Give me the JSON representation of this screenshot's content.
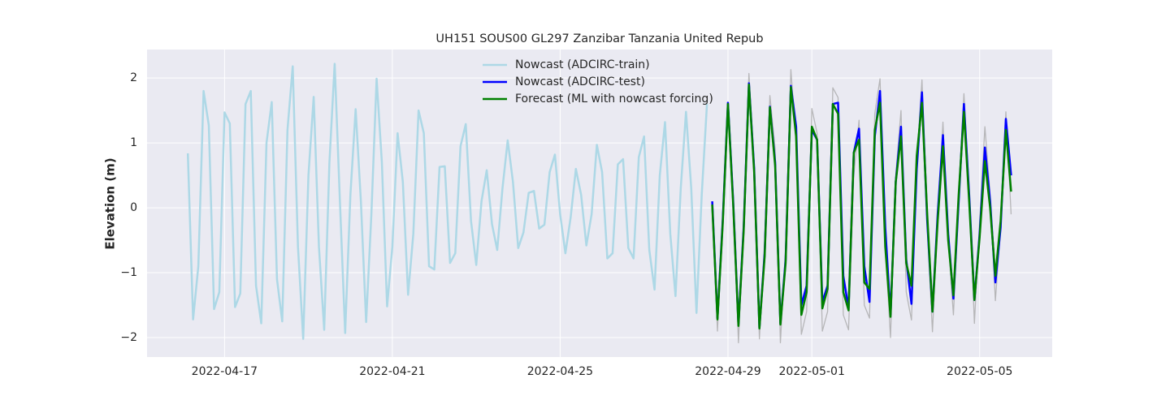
{
  "chart_data": {
    "type": "line",
    "title": "UH151 SOUS00 GL297 Zanzibar Tanzania United Repub",
    "y_label": "Elevation (m)",
    "xlim": [
      "2022-04-15T03:40",
      "2022-05-06T17:30"
    ],
    "xticks": [
      "2022-04-17",
      "2022-04-21",
      "2022-04-25",
      "2022-04-29",
      "2022-05-01",
      "2022-05-05"
    ],
    "ylim": [
      -2.3,
      2.44
    ],
    "yticks": [
      {
        "value": -2,
        "label": "−2"
      },
      {
        "value": -1,
        "label": "−1"
      },
      0,
      1,
      2
    ],
    "grid": true,
    "legend": "upper center",
    "series": [
      {
        "color": "#a9a9a9",
        "x": [
          "2022-04-28T15:00",
          "2022-04-28T18:00",
          "2022-04-28T21:00",
          "2022-04-29T00:00",
          "2022-04-29T03:00",
          "2022-04-29T06:00",
          "2022-04-29T09:00",
          "2022-04-29T12:00",
          "2022-04-29T15:00",
          "2022-04-29T18:00",
          "2022-04-29T21:00",
          "2022-04-30T00:00",
          "2022-04-30T03:00",
          "2022-04-30T06:00",
          "2022-04-30T09:00",
          "2022-04-30T12:00",
          "2022-04-30T15:00",
          "2022-04-30T18:00",
          "2022-04-30T21:00",
          "2022-05-01T00:00",
          "2022-05-01T03:00",
          "2022-05-01T06:00",
          "2022-05-01T09:00",
          "2022-05-01T12:00",
          "2022-05-01T15:00",
          "2022-05-01T18:00",
          "2022-05-01T21:00",
          "2022-05-02T00:00",
          "2022-05-02T03:00",
          "2022-05-02T06:00",
          "2022-05-02T09:00",
          "2022-05-02T12:00",
          "2022-05-02T15:00",
          "2022-05-02T18:00",
          "2022-05-02T21:00",
          "2022-05-03T00:00",
          "2022-05-03T03:00",
          "2022-05-03T06:00",
          "2022-05-03T09:00",
          "2022-05-03T12:00",
          "2022-05-03T15:00",
          "2022-05-03T18:00",
          "2022-05-03T21:00",
          "2022-05-04T00:00",
          "2022-05-04T03:00",
          "2022-05-04T06:00",
          "2022-05-04T09:00",
          "2022-05-04T12:00",
          "2022-05-04T15:00",
          "2022-05-04T18:00",
          "2022-05-04T21:00",
          "2022-05-05T00:00",
          "2022-05-05T03:00",
          "2022-05-05T06:00",
          "2022-05-05T09:00",
          "2022-05-05T12:00",
          "2022-05-05T15:00",
          "2022-05-05T18:00"
        ],
        "values": [
          0.05,
          -1.9,
          -0.1,
          1.6,
          0.2,
          -2.08,
          -0.2,
          2.07,
          0.7,
          -2.02,
          -0.5,
          1.73,
          0.9,
          -2.08,
          -0.6,
          2.13,
          1.0,
          -1.95,
          -1.6,
          1.53,
          1.15,
          -1.9,
          -1.6,
          1.85,
          1.7,
          -1.65,
          -1.88,
          0.5,
          1.35,
          -1.5,
          -1.7,
          1.45,
          1.99,
          -0.6,
          -2.0,
          0.5,
          1.5,
          -1.3,
          -1.73,
          0.7,
          1.97,
          -0.3,
          -1.91,
          -0.2,
          1.32,
          -0.5,
          -1.65,
          0.1,
          1.76,
          0.3,
          -1.78,
          -0.2,
          1.25,
          0.2,
          -1.43,
          -0.3,
          1.48,
          -0.1
        ]
      },
      {
        "name": "Nowcast (ADCIRC-train)",
        "color": "#add8e6",
        "x": [
          "2022-04-16T03:00",
          "2022-04-16T06:00",
          "2022-04-16T09:00",
          "2022-04-16T12:00",
          "2022-04-16T15:00",
          "2022-04-16T18:00",
          "2022-04-16T21:00",
          "2022-04-17T00:00",
          "2022-04-17T03:00",
          "2022-04-17T06:00",
          "2022-04-17T09:00",
          "2022-04-17T12:00",
          "2022-04-17T15:00",
          "2022-04-17T18:00",
          "2022-04-17T21:00",
          "2022-04-18T00:00",
          "2022-04-18T03:00",
          "2022-04-18T06:00",
          "2022-04-18T09:00",
          "2022-04-18T12:00",
          "2022-04-18T15:00",
          "2022-04-18T18:00",
          "2022-04-18T21:00",
          "2022-04-19T00:00",
          "2022-04-19T03:00",
          "2022-04-19T06:00",
          "2022-04-19T09:00",
          "2022-04-19T12:00",
          "2022-04-19T15:00",
          "2022-04-19T18:00",
          "2022-04-19T21:00",
          "2022-04-20T00:00",
          "2022-04-20T03:00",
          "2022-04-20T06:00",
          "2022-04-20T09:00",
          "2022-04-20T12:00",
          "2022-04-20T15:00",
          "2022-04-20T18:00",
          "2022-04-20T21:00",
          "2022-04-21T00:00",
          "2022-04-21T03:00",
          "2022-04-21T06:00",
          "2022-04-21T09:00",
          "2022-04-21T12:00",
          "2022-04-21T15:00",
          "2022-04-21T18:00",
          "2022-04-21T21:00",
          "2022-04-22T00:00",
          "2022-04-22T03:00",
          "2022-04-22T06:00",
          "2022-04-22T09:00",
          "2022-04-22T12:00",
          "2022-04-22T15:00",
          "2022-04-22T18:00",
          "2022-04-22T21:00",
          "2022-04-23T00:00",
          "2022-04-23T03:00",
          "2022-04-23T06:00",
          "2022-04-23T09:00",
          "2022-04-23T12:00",
          "2022-04-23T15:00",
          "2022-04-23T18:00",
          "2022-04-23T21:00",
          "2022-04-24T00:00",
          "2022-04-24T03:00",
          "2022-04-24T06:00",
          "2022-04-24T09:00",
          "2022-04-24T12:00",
          "2022-04-24T15:00",
          "2022-04-24T18:00",
          "2022-04-24T21:00",
          "2022-04-25T00:00",
          "2022-04-25T03:00",
          "2022-04-25T06:00",
          "2022-04-25T09:00",
          "2022-04-25T12:00",
          "2022-04-25T15:00",
          "2022-04-25T18:00",
          "2022-04-25T21:00",
          "2022-04-26T00:00",
          "2022-04-26T03:00",
          "2022-04-26T06:00",
          "2022-04-26T09:00",
          "2022-04-26T12:00",
          "2022-04-26T15:00",
          "2022-04-26T18:00",
          "2022-04-26T21:00",
          "2022-04-27T00:00",
          "2022-04-27T03:00",
          "2022-04-27T06:00",
          "2022-04-27T09:00",
          "2022-04-27T12:00",
          "2022-04-27T15:00",
          "2022-04-27T18:00",
          "2022-04-27T21:00",
          "2022-04-28T00:00",
          "2022-04-28T03:00",
          "2022-04-28T06:00",
          "2022-04-28T09:00",
          "2022-04-28T12:00"
        ],
        "values": [
          0.84,
          -1.72,
          -0.9,
          1.8,
          1.27,
          -1.56,
          -1.3,
          1.47,
          1.3,
          -1.53,
          -1.32,
          1.6,
          1.8,
          -1.2,
          -1.78,
          1.0,
          1.63,
          -1.1,
          -1.75,
          1.2,
          2.18,
          -0.6,
          -2.02,
          0.5,
          1.71,
          -0.6,
          -1.88,
          0.7,
          2.22,
          0.1,
          -1.93,
          0.2,
          1.52,
          0.1,
          -1.76,
          -0.1,
          1.99,
          0.7,
          -1.52,
          -0.6,
          1.15,
          0.4,
          -1.34,
          -0.4,
          1.5,
          1.15,
          -0.9,
          -0.95,
          0.63,
          0.64,
          -0.85,
          -0.7,
          0.95,
          1.29,
          -0.2,
          -0.88,
          0.1,
          0.58,
          -0.25,
          -0.65,
          0.3,
          1.04,
          0.4,
          -0.62,
          -0.38,
          0.23,
          0.26,
          -0.32,
          -0.26,
          0.55,
          0.82,
          -0.1,
          -0.7,
          -0.15,
          0.6,
          0.2,
          -0.58,
          -0.1,
          0.97,
          0.55,
          -0.78,
          -0.7,
          0.67,
          0.75,
          -0.62,
          -0.78,
          0.78,
          1.1,
          -0.65,
          -1.26,
          0.5,
          1.32,
          -0.4,
          -1.36,
          0.3,
          1.48,
          0.3,
          -1.62,
          0.2,
          1.6
        ]
      },
      {
        "name": "Nowcast (ADCIRC-test)",
        "color": "#0000ff",
        "x": [
          "2022-04-28T15:00",
          "2022-04-28T18:00",
          "2022-04-28T21:00",
          "2022-04-29T00:00",
          "2022-04-29T03:00",
          "2022-04-29T06:00",
          "2022-04-29T09:00",
          "2022-04-29T12:00",
          "2022-04-29T15:00",
          "2022-04-29T18:00",
          "2022-04-29T21:00",
          "2022-04-30T00:00",
          "2022-04-30T03:00",
          "2022-04-30T06:00",
          "2022-04-30T09:00",
          "2022-04-30T12:00",
          "2022-04-30T15:00",
          "2022-04-30T18:00",
          "2022-04-30T21:00",
          "2022-05-01T00:00",
          "2022-05-01T03:00",
          "2022-05-01T06:00",
          "2022-05-01T09:00",
          "2022-05-01T12:00",
          "2022-05-01T15:00",
          "2022-05-01T18:00",
          "2022-05-01T21:00",
          "2022-05-02T00:00",
          "2022-05-02T03:00",
          "2022-05-02T06:00",
          "2022-05-02T09:00",
          "2022-05-02T12:00",
          "2022-05-02T15:00",
          "2022-05-02T18:00",
          "2022-05-02T21:00",
          "2022-05-03T00:00",
          "2022-05-03T03:00",
          "2022-05-03T06:00",
          "2022-05-03T09:00",
          "2022-05-03T12:00",
          "2022-05-03T15:00",
          "2022-05-03T18:00",
          "2022-05-03T21:00",
          "2022-05-04T00:00",
          "2022-05-04T03:00",
          "2022-05-04T06:00",
          "2022-05-04T09:00",
          "2022-05-04T12:00",
          "2022-05-04T15:00",
          "2022-05-04T18:00",
          "2022-05-04T21:00",
          "2022-05-05T00:00",
          "2022-05-05T03:00",
          "2022-05-05T06:00",
          "2022-05-05T09:00",
          "2022-05-05T12:00",
          "2022-05-05T15:00",
          "2022-05-05T18:00"
        ],
        "values": [
          0.1,
          -1.7,
          -0.2,
          1.62,
          0.1,
          -1.8,
          -0.3,
          1.92,
          0.6,
          -1.85,
          -0.7,
          1.56,
          0.7,
          -1.78,
          -0.8,
          1.88,
          1.25,
          -1.5,
          -1.2,
          1.2,
          1.05,
          -1.45,
          -1.2,
          1.6,
          1.62,
          -1.05,
          -1.55,
          0.85,
          1.22,
          -0.9,
          -1.45,
          1.1,
          1.8,
          -0.3,
          -1.65,
          0.4,
          1.25,
          -0.8,
          -1.48,
          0.6,
          1.78,
          -0.2,
          -1.6,
          -0.1,
          1.12,
          -0.4,
          -1.4,
          0.1,
          1.6,
          0.2,
          -1.42,
          -0.4,
          0.93,
          0.1,
          -1.15,
          -0.3,
          1.37,
          0.5
        ]
      },
      {
        "name": "Forecast (ML with nowcast forcing)",
        "color": "#008000",
        "x": [
          "2022-04-28T15:00",
          "2022-04-28T18:00",
          "2022-04-28T21:00",
          "2022-04-29T00:00",
          "2022-04-29T03:00",
          "2022-04-29T06:00",
          "2022-04-29T09:00",
          "2022-04-29T12:00",
          "2022-04-29T15:00",
          "2022-04-29T18:00",
          "2022-04-29T21:00",
          "2022-04-30T00:00",
          "2022-04-30T03:00",
          "2022-04-30T06:00",
          "2022-04-30T09:00",
          "2022-04-30T12:00",
          "2022-04-30T15:00",
          "2022-04-30T18:00",
          "2022-04-30T21:00",
          "2022-05-01T00:00",
          "2022-05-01T03:00",
          "2022-05-01T06:00",
          "2022-05-01T09:00",
          "2022-05-01T12:00",
          "2022-05-01T15:00",
          "2022-05-01T18:00",
          "2022-05-01T21:00",
          "2022-05-02T00:00",
          "2022-05-02T03:00",
          "2022-05-02T06:00",
          "2022-05-02T09:00",
          "2022-05-02T12:00",
          "2022-05-02T15:00",
          "2022-05-02T18:00",
          "2022-05-02T21:00",
          "2022-05-03T00:00",
          "2022-05-03T03:00",
          "2022-05-03T06:00",
          "2022-05-03T09:00",
          "2022-05-03T12:00",
          "2022-05-03T15:00",
          "2022-05-03T18:00",
          "2022-05-03T21:00",
          "2022-05-04T00:00",
          "2022-05-04T03:00",
          "2022-05-04T06:00",
          "2022-05-04T09:00",
          "2022-05-04T12:00",
          "2022-05-04T15:00",
          "2022-05-04T18:00",
          "2022-05-04T21:00",
          "2022-05-05T00:00",
          "2022-05-05T03:00",
          "2022-05-05T06:00",
          "2022-05-05T09:00",
          "2022-05-05T12:00",
          "2022-05-05T15:00",
          "2022-05-05T18:00"
        ],
        "values": [
          0.05,
          -1.72,
          -0.25,
          1.6,
          0.05,
          -1.82,
          -0.35,
          1.9,
          0.55,
          -1.86,
          -0.75,
          1.55,
          0.65,
          -1.8,
          -0.85,
          1.86,
          1.1,
          -1.65,
          -1.3,
          1.25,
          1.05,
          -1.55,
          -1.25,
          1.6,
          1.45,
          -1.3,
          -1.58,
          0.85,
          1.05,
          -1.15,
          -1.25,
          1.2,
          1.62,
          -0.6,
          -1.68,
          0.4,
          1.1,
          -0.85,
          -1.2,
          0.8,
          1.62,
          -0.1,
          -1.6,
          -0.2,
          0.95,
          -0.5,
          -1.35,
          0.2,
          1.48,
          0.1,
          -1.42,
          -0.45,
          0.72,
          0.0,
          -1.05,
          -0.2,
          1.2,
          0.25
        ]
      }
    ]
  }
}
